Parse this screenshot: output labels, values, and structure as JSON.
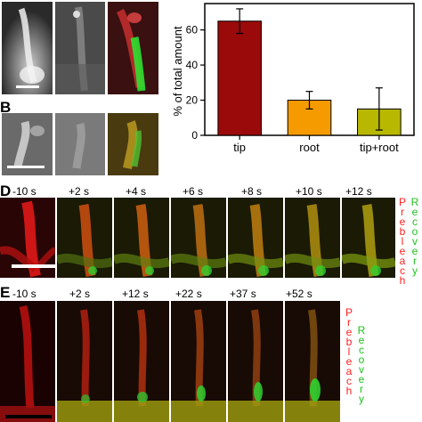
{
  "panels": {
    "b_label": "B",
    "d_label": "D",
    "e_label": "E"
  },
  "chart_data": {
    "type": "bar",
    "categories": [
      "tip",
      "root",
      "tip+root"
    ],
    "values": [
      65,
      20,
      15
    ],
    "errors": [
      7,
      5,
      12
    ],
    "colors": [
      "#9b0a0a",
      "#f59b00",
      "#b8b800"
    ],
    "title": "",
    "xlabel": "",
    "ylabel": "% of total amount",
    "ylim": [
      0,
      75
    ],
    "yticks": [
      0,
      20,
      40,
      60
    ],
    "grid": false
  },
  "panel_d": {
    "time_labels": [
      "-10 s",
      "+2 s",
      "+4 s",
      "+6 s",
      "+8 s",
      "+10 s",
      "+12 s"
    ],
    "legend_prebleach": "Prebleach",
    "legend_recovery": "Recovery"
  },
  "panel_e": {
    "time_labels": [
      "-10 s",
      "+2 s",
      "+12 s",
      "+22 s",
      "+37 s",
      "+52 s"
    ],
    "legend_prebleach": "Prebleach",
    "legend_recovery": "Recovery"
  },
  "colors": {
    "prebleach": "#ff2020",
    "recovery": "#20c020"
  }
}
